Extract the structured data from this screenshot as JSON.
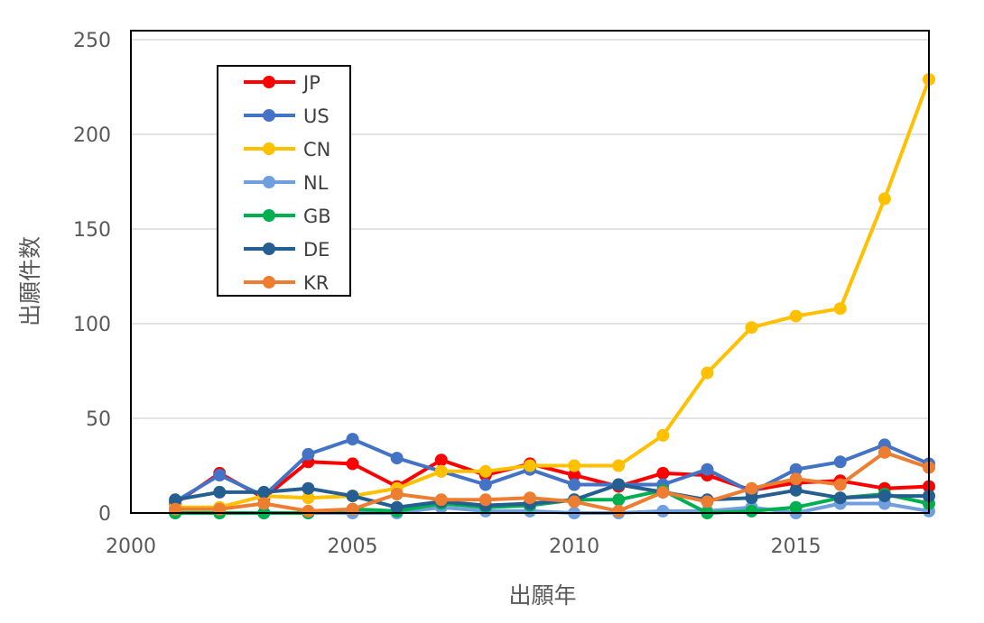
{
  "chart_data": {
    "type": "line",
    "title": "",
    "xlabel": "出願年",
    "ylabel": "出願件数",
    "xlim": [
      2000,
      2018
    ],
    "ylim": [
      0,
      250
    ],
    "x_ticks": [
      2000,
      2005,
      2010,
      2015
    ],
    "y_ticks": [
      0,
      50,
      100,
      150,
      200,
      250
    ],
    "grid": "horizontal",
    "legend_position": "top-left",
    "x": [
      2001,
      2002,
      2003,
      2004,
      2005,
      2006,
      2007,
      2008,
      2009,
      2010,
      2011,
      2012,
      2013,
      2014,
      2015,
      2016,
      2017,
      2018
    ],
    "series": [
      {
        "name": "JP",
        "color": "#ff0000",
        "values": [
          5,
          21,
          8,
          27,
          26,
          14,
          28,
          20,
          26,
          20,
          14,
          21,
          20,
          12,
          16,
          17,
          13,
          14
        ]
      },
      {
        "name": "US",
        "color": "#4472c4",
        "values": [
          6,
          20,
          9,
          31,
          39,
          29,
          22,
          15,
          23,
          15,
          15,
          15,
          23,
          11,
          23,
          27,
          36,
          26
        ]
      },
      {
        "name": "CN",
        "color": "#ffc000",
        "values": [
          3,
          3,
          9,
          8,
          9,
          13,
          22,
          22,
          25,
          25,
          25,
          41,
          74,
          98,
          104,
          108,
          166,
          229
        ]
      },
      {
        "name": "NL",
        "color": "#6f9fdf",
        "values": [
          0,
          0,
          0,
          0,
          0,
          0,
          3,
          1,
          1,
          0,
          0,
          1,
          1,
          3,
          0,
          5,
          5,
          1
        ]
      },
      {
        "name": "GB",
        "color": "#00b050",
        "values": [
          0,
          0,
          0,
          0,
          2,
          1,
          5,
          3,
          4,
          7,
          7,
          12,
          0,
          1,
          3,
          8,
          10,
          5
        ]
      },
      {
        "name": "DE",
        "color": "#255e91",
        "values": [
          7,
          11,
          11,
          13,
          9,
          3,
          6,
          4,
          5,
          7,
          15,
          11,
          7,
          8,
          12,
          8,
          9,
          9
        ]
      },
      {
        "name": "KR",
        "color": "#ed7d31",
        "values": [
          2,
          2,
          5,
          1,
          2,
          10,
          7,
          7,
          8,
          6,
          1,
          11,
          6,
          13,
          18,
          15,
          32,
          24
        ]
      }
    ]
  }
}
